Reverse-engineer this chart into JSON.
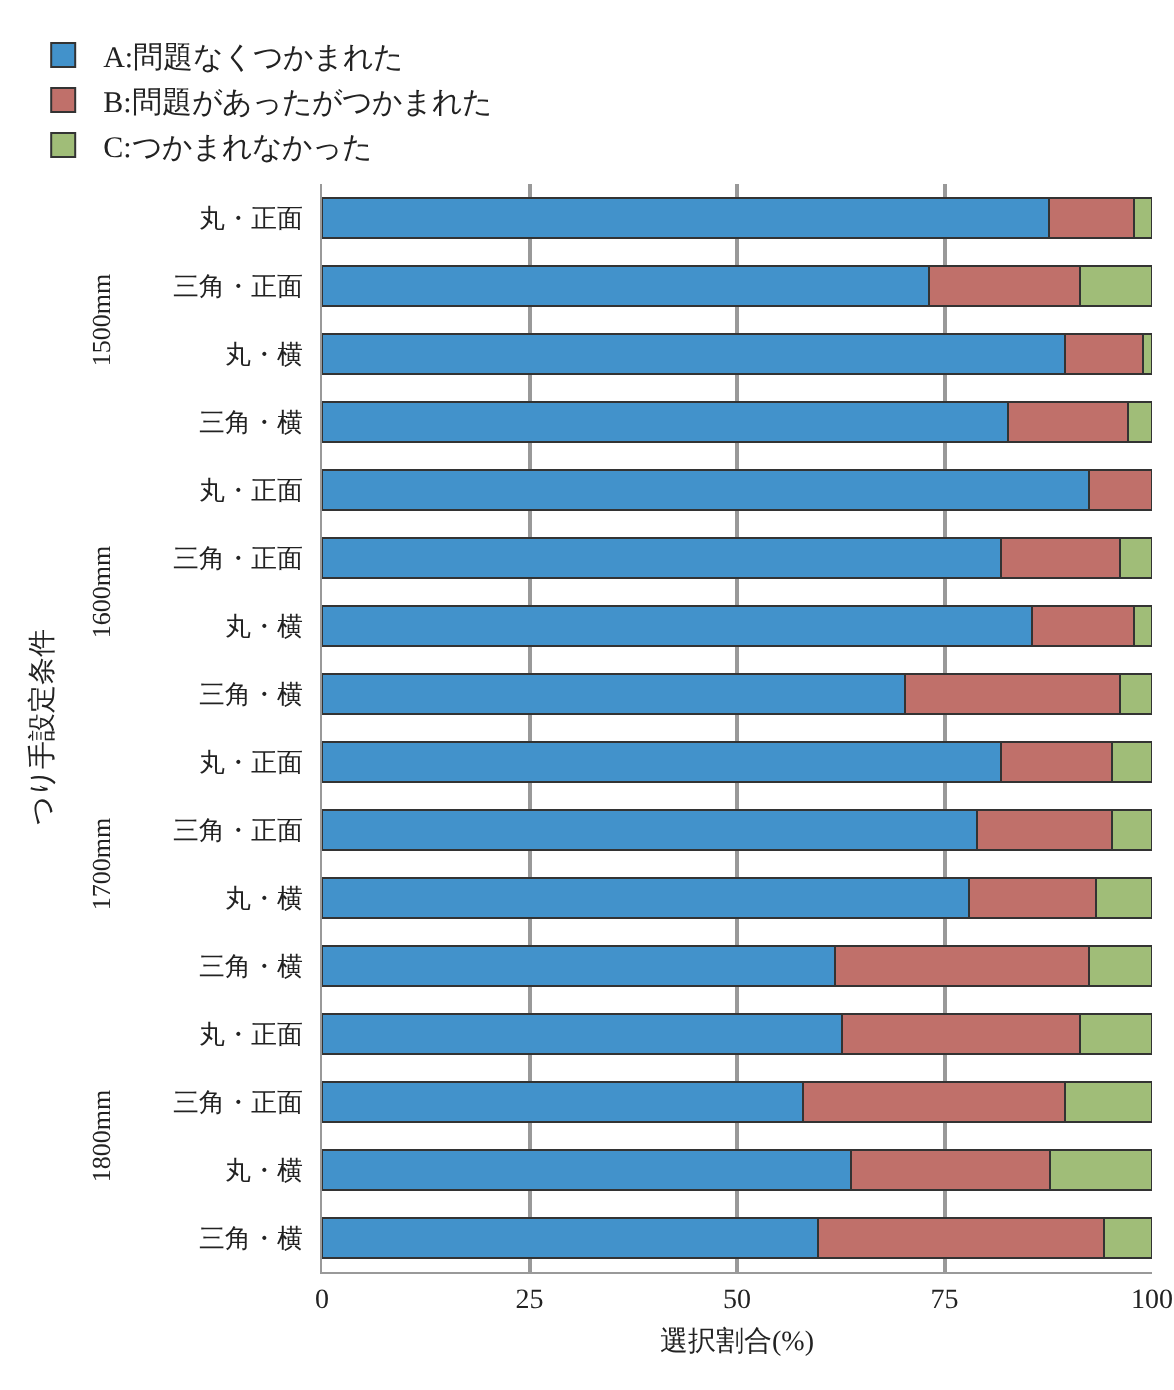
{
  "chart_data": {
    "type": "bar",
    "orientation": "horizontal",
    "stacked": true,
    "categories": [
      "丸・正面",
      "三角・正面",
      "丸・横",
      "三角・横",
      "丸・正面",
      "三角・正面",
      "丸・横",
      "三角・横",
      "丸・正面",
      "三角・正面",
      "丸・横",
      "三角・横",
      "丸・正面",
      "三角・正面",
      "丸・横",
      "三角・横"
    ],
    "series": [
      {
        "name": "A:問題なくつかまれた",
        "color": "#4292cb",
        "values": [
          87.6,
          73.1,
          89.5,
          82.6,
          92.4,
          81.8,
          85.5,
          70.2,
          81.8,
          78.9,
          77.9,
          61.8,
          62.6,
          57.9,
          63.7,
          59.7
        ]
      },
      {
        "name": "B:問題があったがつかまれた",
        "color": "#c0706a",
        "values": [
          10.2,
          18.2,
          9.4,
          14.5,
          7.6,
          14.3,
          12.3,
          25.9,
          13.4,
          16.3,
          15.3,
          30.6,
          28.7,
          31.6,
          24.0,
          34.5
        ]
      },
      {
        "name": "C:つかまれなかった",
        "color": "#a0bd78",
        "values": [
          2.2,
          8.7,
          1.1,
          2.9,
          null,
          3.9,
          2.2,
          3.9,
          4.8,
          4.8,
          6.8,
          7.6,
          8.7,
          10.5,
          12.3,
          5.8
        ]
      }
    ],
    "xlabel": "選択割合(%)",
    "ylabel": "つり手設定条件",
    "annotations": [
      "1500mm",
      "1600mm",
      "1700mm",
      "1800mm"
    ],
    "xlim": [
      0,
      100
    ],
    "xticks": [
      0,
      25,
      50,
      75,
      100
    ],
    "grid": "x",
    "legend": "top"
  }
}
